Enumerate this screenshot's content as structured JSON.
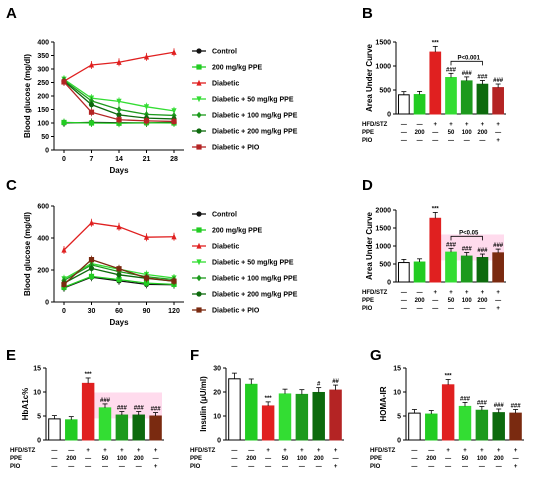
{
  "colors": {
    "control": "#111111",
    "ppe200": "#22cc22",
    "diabetic": "#e02020",
    "ppe50": "#33dd33",
    "ppe100": "#1d9a1d",
    "ppe200d": "#0d6a0d",
    "pio": "#b42424",
    "pioDark": "#7a2a10"
  },
  "legend": [
    {
      "label": "Control",
      "colorKey": "control",
      "marker": "circle"
    },
    {
      "label": "200 mg/kg PPE",
      "colorKey": "ppe200",
      "marker": "square"
    },
    {
      "label": "Diabetic",
      "colorKey": "diabetic",
      "marker": "triangle"
    },
    {
      "label": "Diabetic + 50 mg/kg PPE",
      "colorKey": "ppe50",
      "marker": "triangle-down"
    },
    {
      "label": "Diabetic + 100 mg/kg PPE",
      "colorKey": "ppe100",
      "marker": "diamond"
    },
    {
      "label": "Diabetic + 200 mg/kg PPE",
      "colorKey": "ppe200d",
      "marker": "circle"
    },
    {
      "label": "Diabetic + PIO",
      "colorKey": "pio",
      "marker": "square"
    }
  ],
  "groupRows": {
    "labels": [
      "HFD/STZ",
      "PPE",
      "PIO"
    ],
    "values": [
      [
        "—",
        "—",
        "+",
        "+",
        "+",
        "+",
        "+"
      ],
      [
        "—",
        "200",
        "—",
        "50",
        "100",
        "200",
        "—"
      ],
      [
        "—",
        "—",
        "—",
        "—",
        "—",
        "—",
        "+"
      ]
    ]
  },
  "chart_data": [
    {
      "panel": "A",
      "type": "line",
      "xlabel": "Days",
      "ylabel": "Blood glucose (mg/dl)",
      "x": [
        0,
        7,
        14,
        21,
        28
      ],
      "xticks": [
        "0",
        "7",
        "14",
        "21",
        "28"
      ],
      "ylim": [
        0,
        400
      ],
      "yticks": [
        "0",
        "50",
        "100",
        "150",
        "200",
        "250",
        "300",
        "350",
        "400"
      ],
      "series": [
        {
          "name": "Control",
          "colorKey": "control",
          "values": [
            100,
            102,
            101,
            100,
            103
          ]
        },
        {
          "name": "200 mg/kg PPE",
          "colorKey": "ppe200",
          "values": [
            102,
            100,
            99,
            101,
            100
          ]
        },
        {
          "name": "Diabetic",
          "colorKey": "diabetic",
          "values": [
            255,
            315,
            325,
            345,
            362
          ]
        },
        {
          "name": "Diabetic + 50 mg/kg PPE",
          "colorKey": "ppe50",
          "values": [
            262,
            192,
            180,
            160,
            145
          ]
        },
        {
          "name": "Diabetic + 100 mg/kg PPE",
          "colorKey": "ppe100",
          "values": [
            258,
            182,
            150,
            132,
            128
          ]
        },
        {
          "name": "Diabetic + 200 mg/kg PPE",
          "colorKey": "ppe200d",
          "values": [
            255,
            168,
            130,
            118,
            115
          ]
        },
        {
          "name": "Diabetic + PIO",
          "colorKey": "pio",
          "values": [
            252,
            140,
            112,
            108,
            106
          ]
        }
      ]
    },
    {
      "panel": "B",
      "type": "bar",
      "ylabel": "Area Under Curve",
      "ylim": [
        0,
        1500
      ],
      "yticks": [
        "0",
        "500",
        "1000",
        "1500"
      ],
      "values": [
        400,
        405,
        1290,
        760,
        690,
        620,
        550
      ],
      "colorKeys": [
        "control",
        "ppe200",
        "diabetic",
        "ppe50",
        "ppe100",
        "ppe200d",
        "pio"
      ],
      "annotations": [
        "",
        "",
        "***",
        "###",
        "###",
        "###",
        "###"
      ],
      "bracket": {
        "from": 3,
        "to": 5,
        "label": "P<0.001"
      }
    },
    {
      "panel": "C",
      "type": "line",
      "xlabel": "Days",
      "ylabel": "Blood glucose (mg/dl)",
      "x": [
        0,
        30,
        60,
        90,
        120
      ],
      "xticks": [
        "0",
        "30",
        "60",
        "90",
        "120"
      ],
      "ylim": [
        0,
        600
      ],
      "yticks": [
        "0",
        "200",
        "400",
        "600"
      ],
      "series": [
        {
          "name": "Control",
          "colorKey": "control",
          "values": [
            88,
            155,
            132,
            110,
            108
          ]
        },
        {
          "name": "200 mg/kg PPE",
          "colorKey": "ppe200",
          "values": [
            92,
            160,
            140,
            118,
            110
          ]
        },
        {
          "name": "Diabetic",
          "colorKey": "diabetic",
          "values": [
            325,
            495,
            470,
            405,
            408
          ]
        },
        {
          "name": "Diabetic + 50 mg/kg PPE",
          "colorKey": "ppe50",
          "values": [
            145,
            240,
            205,
            172,
            150
          ]
        },
        {
          "name": "Diabetic + 100 mg/kg PPE",
          "colorKey": "ppe100",
          "values": [
            135,
            232,
            190,
            158,
            140
          ]
        },
        {
          "name": "Diabetic + 200 mg/kg PPE",
          "colorKey": "ppe200d",
          "values": [
            118,
            210,
            170,
            148,
            130
          ]
        },
        {
          "name": "Diabetic + PIO",
          "colorKey": "pioDark",
          "values": [
            110,
            265,
            208,
            150,
            130
          ]
        }
      ]
    },
    {
      "panel": "D",
      "type": "bar",
      "ylabel": "Area Under Curve",
      "ylim": [
        0,
        2000
      ],
      "yticks": [
        "0",
        "500",
        "1000",
        "1500",
        "2000"
      ],
      "values": [
        540,
        555,
        1770,
        830,
        720,
        680,
        810
      ],
      "colorKeys": [
        "control",
        "ppe200",
        "diabetic",
        "ppe50",
        "ppe100",
        "ppe200d",
        "pioDark"
      ],
      "annotations": [
        "",
        "",
        "***",
        "###",
        "###",
        "###",
        "###"
      ],
      "bracket": {
        "from": 3,
        "to": 5,
        "label": "P<0.05"
      }
    },
    {
      "panel": "E",
      "type": "bar",
      "ylabel": "HbA1c%",
      "ylim": [
        0,
        15
      ],
      "yticks": [
        "0",
        "5",
        "10",
        "15"
      ],
      "values": [
        4.4,
        4.2,
        11.8,
        6.7,
        5.2,
        5.2,
        5.0
      ],
      "colorKeys": [
        "control",
        "ppe200",
        "diabetic",
        "ppe50",
        "ppe100",
        "ppe200d",
        "pioDark"
      ],
      "annotations": [
        "",
        "",
        "***",
        "###",
        "###",
        "###",
        "###"
      ]
    },
    {
      "panel": "F",
      "type": "bar",
      "ylabel": "Insulin (μU/ml)",
      "ylim": [
        0,
        30
      ],
      "yticks": [
        "0",
        "10",
        "20",
        "30"
      ],
      "values": [
        25.5,
        23.2,
        14.2,
        19.2,
        19.0,
        19.8,
        20.8
      ],
      "colorKeys": [
        "control",
        "ppe200",
        "diabetic",
        "ppe50",
        "ppe100",
        "ppe200d",
        "pio"
      ],
      "annotations": [
        "",
        "",
        "***",
        "",
        "",
        "#",
        "##"
      ]
    },
    {
      "panel": "G",
      "type": "bar",
      "ylabel": "HOMA-IR",
      "ylim": [
        0,
        15
      ],
      "yticks": [
        "0",
        "5",
        "10",
        "15"
      ],
      "values": [
        5.6,
        5.4,
        11.5,
        7.0,
        6.2,
        5.7,
        5.6
      ],
      "colorKeys": [
        "control",
        "ppe200",
        "diabetic",
        "ppe50",
        "ppe100",
        "ppe200d",
        "pioDark"
      ],
      "annotations": [
        "",
        "",
        "***",
        "###",
        "###",
        "###",
        "###"
      ]
    }
  ]
}
